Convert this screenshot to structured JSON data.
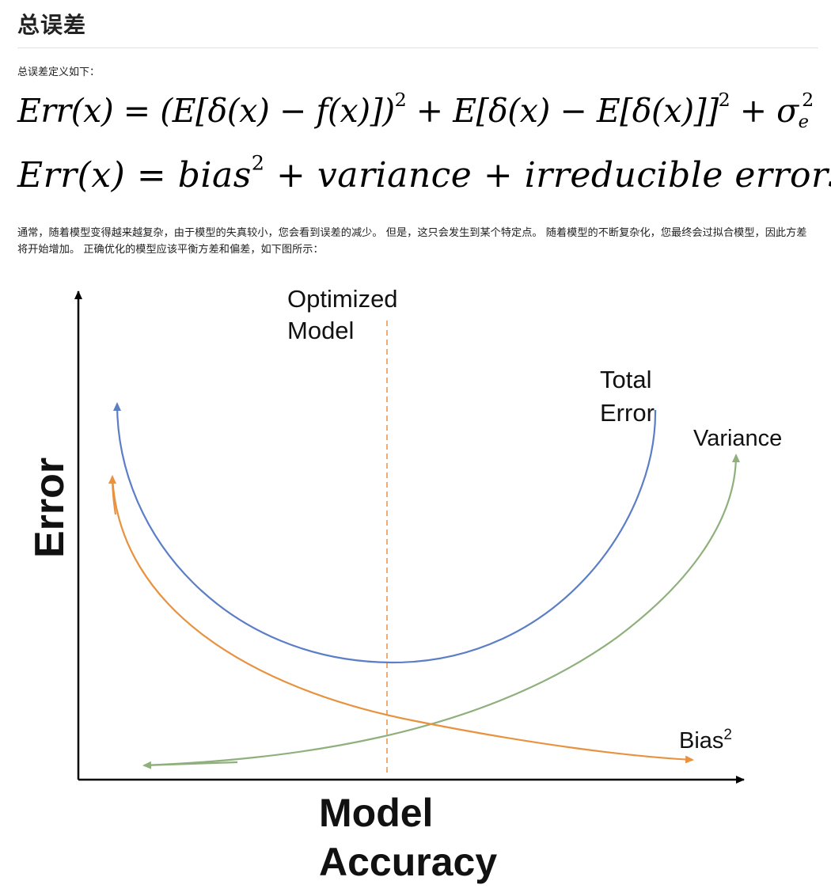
{
  "heading": "总误差",
  "intro": "总误差定义如下：",
  "formula1": {
    "lhs": "Err(x)",
    "eq": "=",
    "term1": "(E[δ(x) − f(x)])",
    "term1_exp": "2",
    "plus1": "+",
    "term2": "E[δ(x) − E[δ(x)]]",
    "term2_exp": "2",
    "plus2": "+",
    "sigma": "σ",
    "sigma_sub": "e",
    "sigma_exp": "2"
  },
  "formula2": {
    "lhs": "Err(x)",
    "eq": "=",
    "bias": "bias",
    "bias_exp": "2",
    "plus1": "+",
    "variance": "variance",
    "plus2": "+",
    "irreducible": "irreducible errors"
  },
  "paragraph": "通常，随着模型变得越来越复杂，由于模型的失真较小，您会看到误差的减少。 但是，这只会发生到某个特定点。 随着模型的不断复杂化，您最终会过拟合模型，因此方差将开始增加。 正确优化的模型应该平衡方差和偏差，如下图所示：",
  "chart_data": {
    "type": "line",
    "title": "",
    "xlabel_line1": "Model",
    "xlabel_line2": "Accuracy",
    "ylabel": "Error",
    "optimized_line1": "Optimized",
    "optimized_line2": "Model",
    "series": [
      {
        "name_line1": "Total",
        "name_line2": "Error",
        "color": "#5b7ec6"
      },
      {
        "name": "Variance",
        "color": "#8fb07c"
      },
      {
        "name": "Bias",
        "name_sup": "2",
        "color": "#e8923f"
      }
    ],
    "optimized_color": "#f0a25a"
  }
}
